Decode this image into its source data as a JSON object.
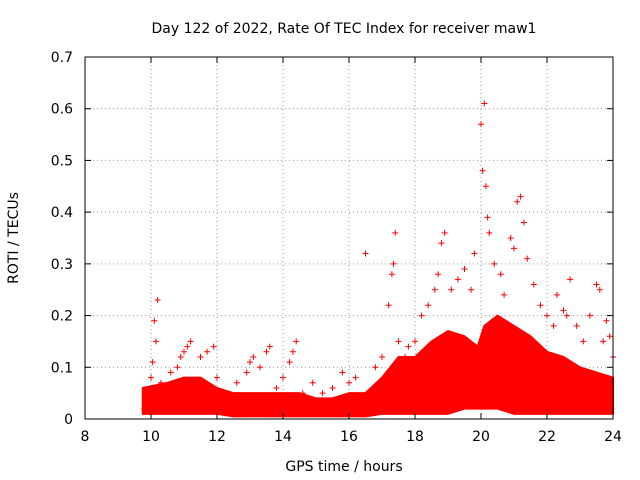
{
  "chart_data": {
    "type": "scatter",
    "title": "Day 122 of 2022, Rate Of TEC Index for receiver maw1",
    "xlabel": "GPS time / hours",
    "ylabel": "ROTI / TECUs",
    "xlim": [
      8,
      24
    ],
    "ylim": [
      0,
      0.7
    ],
    "xticks": [
      "8",
      "10",
      "12",
      "14",
      "16",
      "18",
      "20",
      "22",
      "24"
    ],
    "yticks": [
      "0",
      "0.1",
      "0.2",
      "0.3",
      "0.4",
      "0.5",
      "0.6",
      "0.7"
    ],
    "grid": true,
    "marker": "plus",
    "color": "#ff0000",
    "series": [
      {
        "points": [
          [
            9.8,
            0.02
          ],
          [
            9.9,
            0.05
          ],
          [
            10.0,
            0.08
          ],
          [
            10.05,
            0.11
          ],
          [
            10.1,
            0.19
          ],
          [
            10.15,
            0.15
          ],
          [
            10.2,
            0.23
          ],
          [
            10.3,
            0.07
          ],
          [
            10.5,
            0.06
          ],
          [
            10.6,
            0.09
          ],
          [
            10.8,
            0.1
          ],
          [
            10.9,
            0.12
          ],
          [
            11.0,
            0.13
          ],
          [
            11.1,
            0.14
          ],
          [
            11.2,
            0.15
          ],
          [
            11.5,
            0.12
          ],
          [
            11.7,
            0.13
          ],
          [
            11.9,
            0.14
          ],
          [
            12.0,
            0.08
          ],
          [
            12.3,
            0.05
          ],
          [
            12.6,
            0.07
          ],
          [
            12.9,
            0.09
          ],
          [
            13.0,
            0.11
          ],
          [
            13.1,
            0.12
          ],
          [
            13.3,
            0.1
          ],
          [
            13.5,
            0.13
          ],
          [
            13.6,
            0.14
          ],
          [
            13.8,
            0.06
          ],
          [
            14.0,
            0.08
          ],
          [
            14.2,
            0.11
          ],
          [
            14.3,
            0.13
          ],
          [
            14.4,
            0.15
          ],
          [
            14.6,
            0.05
          ],
          [
            14.9,
            0.07
          ],
          [
            15.2,
            0.05
          ],
          [
            15.5,
            0.06
          ],
          [
            15.8,
            0.09
          ],
          [
            16.0,
            0.07
          ],
          [
            16.2,
            0.08
          ],
          [
            16.5,
            0.32
          ],
          [
            16.8,
            0.1
          ],
          [
            17.0,
            0.12
          ],
          [
            17.2,
            0.22
          ],
          [
            17.3,
            0.28
          ],
          [
            17.35,
            0.3
          ],
          [
            17.4,
            0.36
          ],
          [
            17.5,
            0.15
          ],
          [
            17.7,
            0.12
          ],
          [
            17.8,
            0.14
          ],
          [
            18.0,
            0.15
          ],
          [
            18.2,
            0.2
          ],
          [
            18.4,
            0.22
          ],
          [
            18.6,
            0.25
          ],
          [
            18.7,
            0.28
          ],
          [
            18.8,
            0.34
          ],
          [
            18.9,
            0.36
          ],
          [
            19.1,
            0.25
          ],
          [
            19.3,
            0.27
          ],
          [
            19.5,
            0.29
          ],
          [
            19.7,
            0.25
          ],
          [
            19.8,
            0.32
          ],
          [
            20.0,
            0.57
          ],
          [
            20.05,
            0.48
          ],
          [
            20.1,
            0.61
          ],
          [
            20.15,
            0.45
          ],
          [
            20.2,
            0.39
          ],
          [
            20.25,
            0.36
          ],
          [
            20.4,
            0.3
          ],
          [
            20.6,
            0.28
          ],
          [
            20.7,
            0.24
          ],
          [
            20.9,
            0.35
          ],
          [
            21.0,
            0.33
          ],
          [
            21.1,
            0.42
          ],
          [
            21.2,
            0.43
          ],
          [
            21.3,
            0.38
          ],
          [
            21.4,
            0.31
          ],
          [
            21.6,
            0.26
          ],
          [
            21.8,
            0.22
          ],
          [
            22.0,
            0.2
          ],
          [
            22.2,
            0.18
          ],
          [
            22.3,
            0.24
          ],
          [
            22.5,
            0.21
          ],
          [
            22.6,
            0.2
          ],
          [
            22.7,
            0.27
          ],
          [
            22.9,
            0.18
          ],
          [
            23.1,
            0.15
          ],
          [
            23.3,
            0.2
          ],
          [
            23.5,
            0.26
          ],
          [
            23.6,
            0.25
          ],
          [
            23.7,
            0.15
          ],
          [
            23.8,
            0.19
          ],
          [
            23.9,
            0.16
          ],
          [
            24.0,
            0.12
          ]
        ]
      }
    ],
    "envelope": {
      "x": [
        9.75,
        10.5,
        11.0,
        11.5,
        12.0,
        12.5,
        13.0,
        13.5,
        14.0,
        14.5,
        15.0,
        15.5,
        16.0,
        16.5,
        17.0,
        17.5,
        18.0,
        18.5,
        19.0,
        19.5,
        19.9,
        20.1,
        20.5,
        21.0,
        21.5,
        22.0,
        22.5,
        23.0,
        23.5,
        24.0
      ],
      "low": [
        0.01,
        0.01,
        0.01,
        0.01,
        0.01,
        0.005,
        0.005,
        0.005,
        0.005,
        0.005,
        0.005,
        0.005,
        0.005,
        0.005,
        0.01,
        0.01,
        0.01,
        0.01,
        0.01,
        0.02,
        0.02,
        0.02,
        0.02,
        0.01,
        0.01,
        0.01,
        0.01,
        0.01,
        0.01,
        0.01
      ],
      "high": [
        0.06,
        0.07,
        0.08,
        0.08,
        0.06,
        0.05,
        0.05,
        0.05,
        0.05,
        0.05,
        0.04,
        0.04,
        0.05,
        0.05,
        0.08,
        0.12,
        0.12,
        0.15,
        0.17,
        0.16,
        0.14,
        0.18,
        0.2,
        0.18,
        0.16,
        0.13,
        0.12,
        0.1,
        0.09,
        0.08
      ]
    }
  }
}
